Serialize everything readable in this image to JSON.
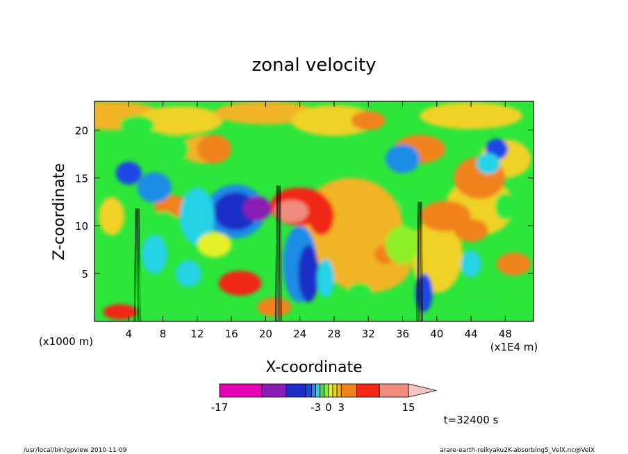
{
  "chart_data": {
    "type": "heatmap",
    "title": "zonal velocity",
    "xlabel": "X-coordinate",
    "ylabel": "Z-coordinate",
    "x_unit_left": "(x1000 m)",
    "x_unit_right": "(x1E4 m)",
    "xlim": [
      0,
      51.3
    ],
    "ylim": [
      0,
      23
    ],
    "x_ticks": [
      4,
      8,
      12,
      16,
      20,
      24,
      28,
      32,
      36,
      40,
      44,
      48
    ],
    "y_ticks": [
      5,
      10,
      15,
      20
    ],
    "colorbar": {
      "levels": [
        -17,
        -12,
        -7,
        -5,
        -4,
        -3,
        -2,
        -1,
        0,
        1,
        2,
        3,
        5,
        9,
        15
      ],
      "tick_labels": [
        "-17",
        "-3",
        "0",
        "3",
        "15"
      ],
      "colors": [
        "#e600b4",
        "#8a1eb4",
        "#1e2dc8",
        "#1e46e6",
        "#1e8ce6",
        "#28d2e6",
        "#2ce63c",
        "#8cf028",
        "#e6f028",
        "#f0d226",
        "#f0b428",
        "#f0821e",
        "#f02814",
        "#f08c7d"
      ],
      "extend": "max"
    },
    "time_label": "t=32400 s",
    "footer_left": "/usr/local/bin/gpview  2010-11-09",
    "footer_right": "arare-earth-reikyaku2K-absorbing5_VelX.nc@VelX",
    "field_features": [
      {
        "x": 5,
        "z": 10,
        "kind": "convective column"
      },
      {
        "x": 21.5,
        "z": 12.5,
        "kind": "convective column, outflow -10 (west) / +10 (east)"
      },
      {
        "x": 38,
        "z": 10,
        "kind": "convective column"
      }
    ]
  }
}
